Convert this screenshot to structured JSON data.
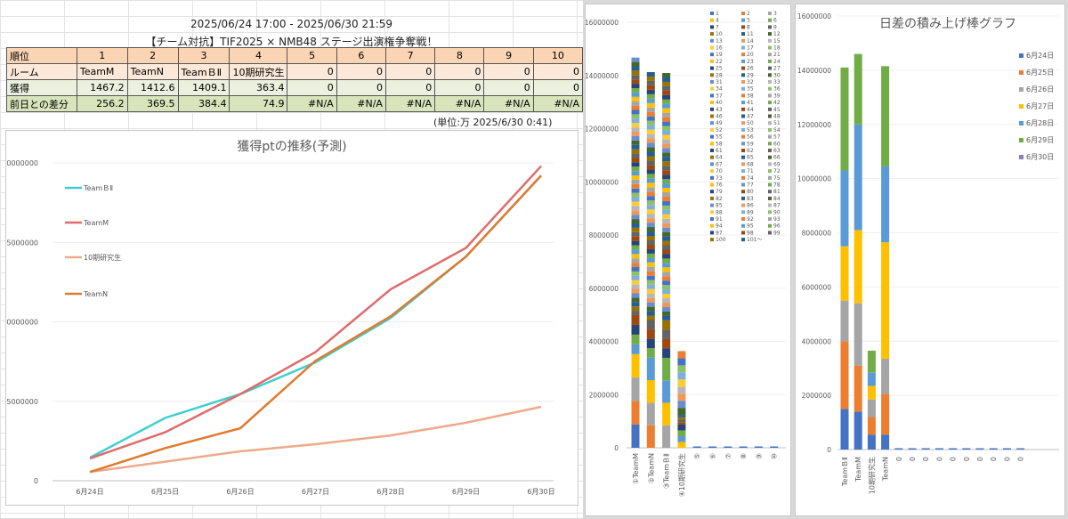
{
  "sheet": {
    "period": "2025/06/24 17:00 - 2025/06/30 21:59",
    "event_title": "【チーム対抗】TIF2025 × NMB48 ステージ出演権争奪戦！",
    "unit_note": "(単位:万  2025/6/30 0:41)",
    "table": {
      "row_labels": [
        "順位",
        "ルーム",
        "獲得",
        "前日との差分"
      ],
      "ranks": [
        "1",
        "2",
        "3",
        "4",
        "5",
        "6",
        "7",
        "8",
        "9",
        "10"
      ],
      "rooms": [
        "TeamM",
        "TeamN",
        "TeamＢⅡ",
        "10期研究生",
        "0",
        "0",
        "0",
        "0",
        "0",
        "0"
      ],
      "points": [
        "1467.2",
        "1412.6",
        "1409.1",
        "363.4",
        "0",
        "0",
        "0",
        "0",
        "0",
        "0"
      ],
      "diffs": [
        "256.2",
        "369.5",
        "384.4",
        "74.9",
        "#N/A",
        "#N/A",
        "#N/A",
        "#N/A",
        "#N/A",
        "#N/A"
      ]
    }
  },
  "chart_data": [
    {
      "type": "line",
      "title": "獲得ptの推移(予測)",
      "x": [
        "6月24日",
        "6月25日",
        "6月26日",
        "6月27日",
        "6月28日",
        "6月29日",
        "6月30日"
      ],
      "yticks": [
        "0",
        "5000000",
        "10000000",
        "15000000",
        "20000000"
      ],
      "ylim": [
        0,
        20000000
      ],
      "legend_position": "left",
      "series": [
        {
          "name": "TeamＢⅡ",
          "color": "#3ccfcf",
          "values": [
            1450000,
            3950000,
            5450000,
            7450000,
            10250000,
            14100000,
            19200000
          ]
        },
        {
          "name": "TeamM",
          "color": "#e06b6b",
          "values": [
            1400000,
            3050000,
            5450000,
            8100000,
            12050000,
            14650000,
            19800000
          ]
        },
        {
          "name": "10期研究生",
          "color": "#eea98a",
          "values": [
            550000,
            1200000,
            1850000,
            2300000,
            2850000,
            3650000,
            4650000
          ]
        },
        {
          "name": "TeamN",
          "color": "#e07a2e",
          "values": [
            550000,
            2050000,
            3300000,
            7550000,
            10350000,
            14100000,
            19200000
          ]
        }
      ]
    },
    {
      "type": "bar",
      "stacked": true,
      "categories": [
        "①TeamM",
        "②TeamN",
        "③TeamＢⅡ",
        "④10期研究生",
        "⑤",
        "⑥",
        "⑦",
        "⑧",
        "⑨",
        "⑩"
      ],
      "totals": [
        14672000,
        14126000,
        14091000,
        3634000,
        0,
        0,
        0,
        0,
        0,
        0
      ],
      "yticks": [
        "0",
        "2000000",
        "4000000",
        "6000000",
        "8000000",
        "10000000",
        "12000000",
        "14000000",
        "16000000"
      ],
      "ylim": [
        0,
        16000000
      ],
      "legend_entries": [
        "1",
        "2",
        "3",
        "4",
        "5",
        "6",
        "7",
        "8",
        "9",
        "10",
        "11",
        "12",
        "13",
        "14",
        "15",
        "16",
        "17",
        "18",
        "19",
        "20",
        "21",
        "22",
        "23",
        "24",
        "25",
        "26",
        "27",
        "28",
        "29",
        "30",
        "31",
        "32",
        "33",
        "34",
        "35",
        "36",
        "37",
        "38",
        "39",
        "40",
        "41",
        "42",
        "43",
        "44",
        "45",
        "46",
        "47",
        "48",
        "49",
        "50",
        "51",
        "52",
        "53",
        "54",
        "55",
        "56",
        "57",
        "58",
        "59",
        "60",
        "61",
        "62",
        "63",
        "64",
        "65",
        "66",
        "67",
        "68",
        "69",
        "70",
        "71",
        "72",
        "73",
        "74",
        "75",
        "76",
        "77",
        "78",
        "79",
        "80",
        "81",
        "82",
        "83",
        "84",
        "85",
        "86",
        "87",
        "88",
        "89",
        "90",
        "91",
        "92",
        "93",
        "94",
        "95",
        "96",
        "97",
        "98",
        "99",
        "100",
        "101～"
      ],
      "palette": [
        "#4472c4",
        "#ed7d31",
        "#a5a5a5",
        "#ffc000",
        "#5b9bd5",
        "#70ad47",
        "#264478",
        "#9e480e",
        "#636363",
        "#997300",
        "#255e91",
        "#43682b",
        "#698ed0",
        "#f1975a",
        "#b7b7b7",
        "#ffcd33",
        "#7cafdd",
        "#8cc168"
      ]
    },
    {
      "type": "bar",
      "stacked": true,
      "title": "日差の積み上げ棒グラフ",
      "categories": [
        "TeamＢⅡ",
        "TeamM",
        "10期研究生",
        "TeamN",
        "0",
        "0",
        "0",
        "0",
        "0",
        "0",
        "0",
        "0",
        "0",
        "0"
      ],
      "yticks": [
        "0",
        "2000000",
        "4000000",
        "6000000",
        "8000000",
        "10000000",
        "12000000",
        "14000000",
        "16000000"
      ],
      "ylim": [
        0,
        16000000
      ],
      "legend_position": "right",
      "series": [
        {
          "name": "6月24日",
          "color": "#4472c4",
          "values": [
            1500000,
            1400000,
            550000,
            550000,
            0,
            0,
            0,
            0,
            0,
            0,
            0,
            0,
            0,
            0
          ]
        },
        {
          "name": "6月25日",
          "color": "#ed7d31",
          "values": [
            2500000,
            1700000,
            650000,
            1500000,
            0,
            0,
            0,
            0,
            0,
            0,
            0,
            0,
            0,
            0
          ]
        },
        {
          "name": "6月26日",
          "color": "#a5a5a5",
          "values": [
            1500000,
            2300000,
            650000,
            1300000,
            0,
            0,
            0,
            0,
            0,
            0,
            0,
            0,
            0,
            0
          ]
        },
        {
          "name": "6月27日",
          "color": "#ffc000",
          "values": [
            2000000,
            2700000,
            500000,
            4300000,
            0,
            0,
            0,
            0,
            0,
            0,
            0,
            0,
            0,
            0
          ]
        },
        {
          "name": "6月28日",
          "color": "#5b9bd5",
          "values": [
            2800000,
            3900000,
            500000,
            2800000,
            0,
            0,
            0,
            0,
            0,
            0,
            0,
            0,
            0,
            0
          ]
        },
        {
          "name": "6月29日",
          "color": "#70ad47",
          "values": [
            3800000,
            2600000,
            800000,
            3700000,
            0,
            0,
            0,
            0,
            0,
            0,
            0,
            0,
            0,
            0
          ]
        },
        {
          "name": "6月30日",
          "color": "#8e7cc3",
          "values": [
            0,
            0,
            0,
            0,
            0,
            0,
            0,
            0,
            0,
            0,
            0,
            0,
            0,
            0
          ]
        }
      ]
    }
  ]
}
